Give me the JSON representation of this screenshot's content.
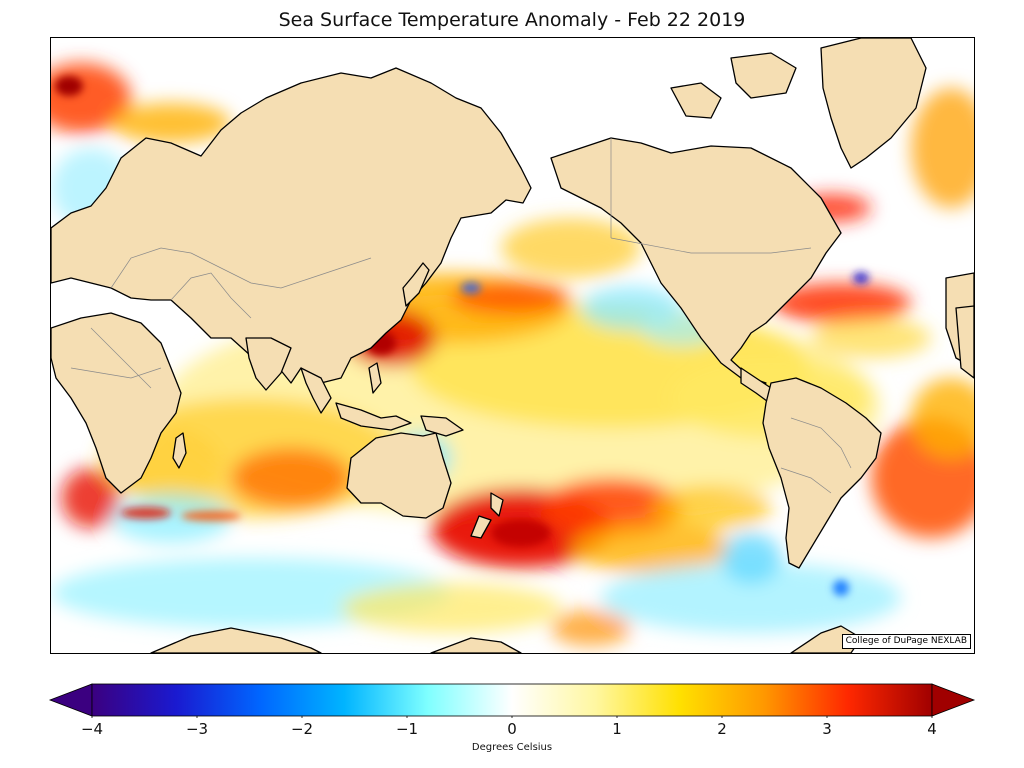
{
  "title": "Sea Surface Temperature Anomaly - Feb 22 2019",
  "credit": "College of DuPage NEXLAB",
  "colorbar": {
    "label": "Degrees Celsius",
    "min": -4,
    "max": 4,
    "ticks": [
      {
        "value": -4,
        "label": "−4"
      },
      {
        "value": -3,
        "label": "−3"
      },
      {
        "value": -2,
        "label": "−2"
      },
      {
        "value": -1,
        "label": "−1"
      },
      {
        "value": 0,
        "label": "0"
      },
      {
        "value": 1,
        "label": "1"
      },
      {
        "value": 2,
        "label": "2"
      },
      {
        "value": 3,
        "label": "3"
      },
      {
        "value": 4,
        "label": "4"
      }
    ],
    "colors": [
      "#3b0080",
      "#1a1ad0",
      "#0066ff",
      "#00b4ff",
      "#7fffff",
      "#ffffff",
      "#fff7a0",
      "#ffe000",
      "#ff9800",
      "#ff2800",
      "#a00000"
    ]
  },
  "colors": {
    "land": "#f5deb3",
    "coast": "#000000",
    "borders": "#8a8a8a",
    "ocean_neutral": "#ffffff"
  }
}
